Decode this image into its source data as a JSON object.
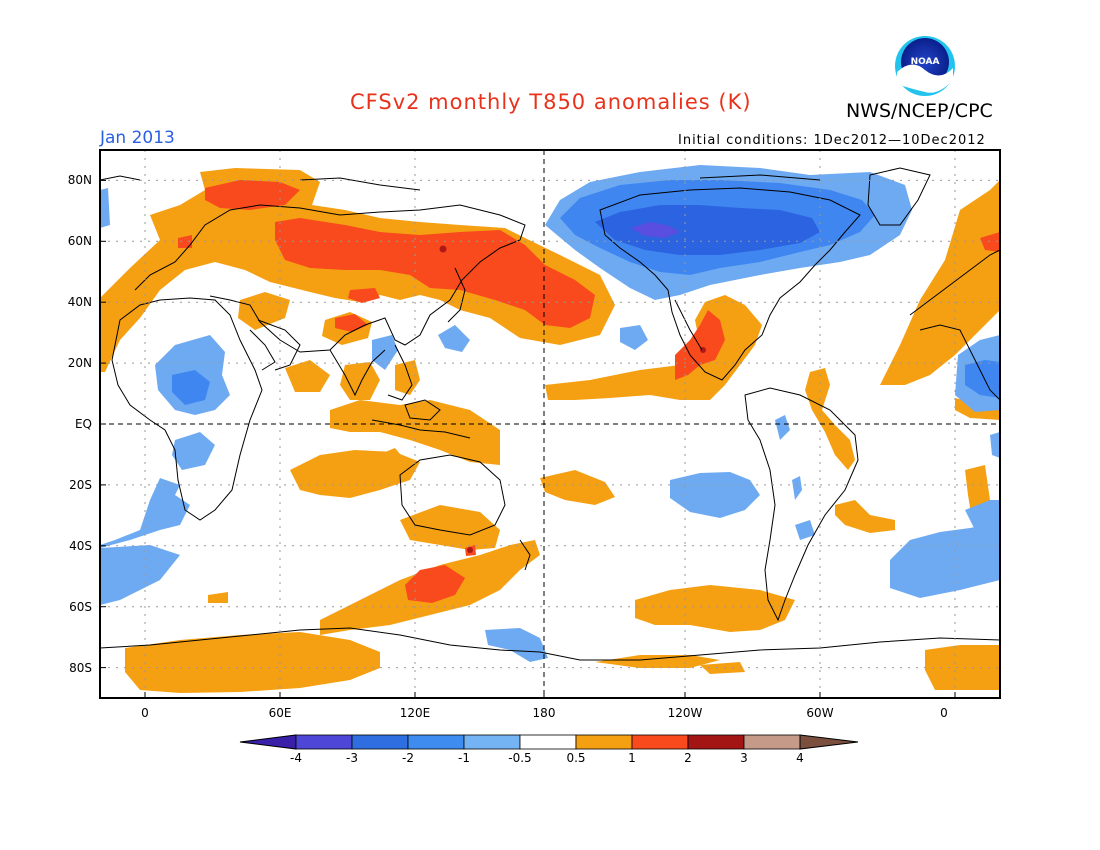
{
  "header": {
    "title": "CFSv2 monthly T850 anomalies (K)",
    "agency": "NWS/NCEP/CPC",
    "logo_text": "NOAA",
    "month": "Jan 2013",
    "initial_conditions": "Initial conditions: 1Dec2012—10Dec2012"
  },
  "map": {
    "projection": "equirectangular",
    "lon_range_deg": [
      -20,
      380
    ],
    "lat_range_deg": [
      -90,
      90
    ],
    "lat_labels": [
      "80N",
      "60N",
      "40N",
      "20N",
      "EQ",
      "20S",
      "40S",
      "60S",
      "80S"
    ],
    "lon_labels": [
      "0",
      "60E",
      "120E",
      "180",
      "120W",
      "60W",
      "0"
    ],
    "grid": "dotted",
    "anomaly_colors": {
      "cold_deep": "#2b63e0",
      "cold_mid": "#3f86f0",
      "cold_light": "#6eaaf2",
      "warm": "#f5a012",
      "warm_strong": "#f84a1c",
      "warm_max": "#b01818"
    }
  },
  "colorbar": {
    "labels": [
      "-4",
      "-3",
      "-2",
      "-1",
      "-0.5",
      "0.5",
      "1",
      "2",
      "3",
      "4"
    ],
    "colors": [
      "#3a1fa8",
      "#4d46d6",
      "#2f6ee0",
      "#3f8cf0",
      "#74b4f4",
      "#ffffff",
      "#f5a012",
      "#f84a1c",
      "#a31515",
      "#c59a88",
      "#7a4f3e"
    ]
  }
}
